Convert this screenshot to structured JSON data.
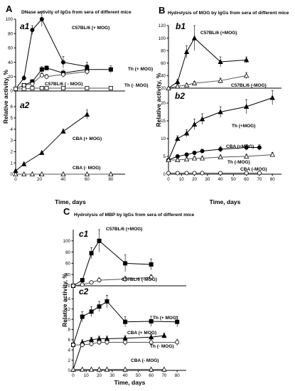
{
  "chart_data": [
    {
      "id": "A",
      "type": "line",
      "panel_label": "A",
      "title": "DNase activity of IgGs from sera of different mice",
      "xlabel": "Time, days",
      "ylabel": "Relative activity, %",
      "xticks": [
        0,
        20,
        40,
        60,
        80
      ],
      "subplots": [
        {
          "id": "a1",
          "label": "a1",
          "ylim": [
            0,
            100
          ],
          "yticks": [
            0,
            20,
            40,
            60,
            80,
            100
          ],
          "series": [
            {
              "name": "C57BL/6 (+ MOG)",
              "marker": "circle-filled",
              "x": [
                0,
                7,
                14,
                22,
                40,
                60
              ],
              "y": [
                3,
                18,
                85,
                100,
                40,
                34
              ],
              "err": [
                0,
                3,
                6,
                10,
                8,
                6
              ]
            },
            {
              "name": "Th (+ MOG)",
              "marker": "square-filled",
              "x": [
                0,
                7,
                14,
                22,
                26,
                40,
                60,
                80
              ],
              "y": [
                3,
                8,
                13,
                30,
                32,
                25,
                30,
                30
              ],
              "err": [
                0,
                2,
                3,
                4,
                3,
                4,
                4,
                5
              ]
            },
            {
              "name": "C57BL/6 ( - MOG)",
              "marker": "circle-open",
              "x": [
                0,
                7,
                14,
                22,
                26,
                40,
                60
              ],
              "y": [
                3,
                8,
                10,
                22,
                20,
                23,
                27
              ],
              "err": [
                0,
                2,
                2,
                3,
                3,
                4,
                4
              ]
            },
            {
              "name": "Th (- MOG)",
              "marker": "square-open",
              "x": [
                0,
                7,
                14,
                22,
                26,
                40,
                60,
                80
              ],
              "y": [
                3,
                3,
                4,
                4,
                4,
                4,
                4,
                4
              ],
              "err": [
                0,
                0,
                0,
                0,
                0,
                0,
                0,
                0
              ]
            }
          ]
        },
        {
          "id": "a2",
          "label": "a2",
          "ylim": [
            0,
            6
          ],
          "yticks": [
            0,
            1,
            2,
            3,
            4,
            5,
            6
          ],
          "series": [
            {
              "name": "CBA (+ MOG)",
              "marker": "triangle-filled",
              "x": [
                0,
                7,
                22,
                40,
                60
              ],
              "y": [
                0.3,
                0.9,
                1.9,
                3.8,
                5.3
              ],
              "err": [
                0,
                0,
                0,
                0.2,
                0.4
              ]
            },
            {
              "name": "CBA (- MOG)",
              "marker": "triangle-open",
              "x": [
                0,
                7,
                14,
                22,
                40,
                60,
                80
              ],
              "y": [
                0,
                0,
                0,
                0,
                0,
                0,
                0
              ],
              "err": [
                0,
                0,
                0,
                0,
                0,
                0,
                0
              ]
            }
          ]
        }
      ]
    },
    {
      "id": "B",
      "type": "line",
      "panel_label": "B",
      "title": "Hydrolysis of MOG by IgGs from sera of different mice",
      "xlabel": "Time, days",
      "ylabel": "Relative activity, %",
      "xticks": [
        0,
        10,
        20,
        30,
        40,
        50,
        60,
        70,
        80
      ],
      "subplots": [
        {
          "id": "b1",
          "label": "b1",
          "ylim": [
            20,
            120
          ],
          "yticks": [
            20,
            40,
            60,
            80,
            100,
            120
          ],
          "series": [
            {
              "name": "C57BL/6 (+MOG)",
              "marker": "triangle-filled",
              "x": [
                0,
                7,
                14,
                20,
                40,
                60
              ],
              "y": [
                20,
                30,
                78,
                100,
                62,
                65
              ],
              "err": [
                0,
                4,
                10,
                20,
                8,
                5
              ]
            },
            {
              "name": "C57BL/6 (-MOG)",
              "marker": "triangle-open",
              "x": [
                0,
                7,
                14,
                20,
                40,
                60
              ],
              "y": [
                20,
                23,
                25,
                28,
                32,
                40
              ],
              "err": [
                0,
                2,
                2,
                3,
                4,
                5
              ]
            }
          ]
        },
        {
          "id": "b2",
          "label": "b2",
          "ylim": [
            0,
            24
          ],
          "yticks": [
            0,
            5,
            10,
            15,
            20
          ],
          "series": [
            {
              "name": "Th (+MOG)",
              "marker": "triangle-filled",
              "x": [
                0,
                7,
                14,
                20,
                26,
                40,
                60,
                80
              ],
              "y": [
                4,
                10,
                11.5,
                14,
                15.5,
                17.5,
                19,
                21.5
              ],
              "err": [
                0,
                0.8,
                1,
                1.5,
                1.5,
                1.5,
                2,
                2
              ]
            },
            {
              "name": "CBA (+MOG)",
              "marker": "circle-filled",
              "x": [
                0,
                7,
                14,
                20,
                26,
                40,
                60,
                70
              ],
              "y": [
                4,
                5,
                5.5,
                6,
                6.5,
                7,
                7.5,
                7.5
              ],
              "err": [
                0,
                0.5,
                0.5,
                0.5,
                0.5,
                0.8,
                0.8,
                0.8
              ]
            },
            {
              "name": "Th (-MOG)",
              "marker": "triangle-open",
              "x": [
                0,
                7,
                14,
                20,
                26,
                40,
                60,
                80
              ],
              "y": [
                4,
                4,
                4.2,
                4.5,
                4.5,
                4.8,
                5,
                5.5
              ],
              "err": [
                0,
                0.5,
                0.5,
                0.5,
                0.5,
                0.6,
                0.6,
                0.6
              ]
            },
            {
              "name": "CBA (-MOG)",
              "marker": "circle-open",
              "x": [
                0,
                7,
                14,
                20,
                26,
                40,
                60,
                70
              ],
              "y": [
                0.3,
                0.3,
                0.3,
                0.3,
                0.3,
                0.3,
                0.3,
                0.3
              ],
              "err": [
                0,
                0,
                0,
                0,
                0,
                0,
                0,
                0
              ]
            }
          ]
        }
      ]
    },
    {
      "id": "C",
      "type": "line",
      "panel_label": "C",
      "title": "Hydrolysis of MBP by IgGs from sera of different mice",
      "xlabel": "Time, days",
      "ylabel": "Relative activity, %",
      "xticks": [
        0,
        10,
        20,
        30,
        40,
        50,
        60,
        70,
        80
      ],
      "subplots": [
        {
          "id": "c1",
          "label": "c1",
          "ylim": [
            20,
            120
          ],
          "yticks": [
            20,
            40,
            60,
            80,
            100
          ],
          "series": [
            {
              "name": "C57BL/6 (+MOG)",
              "marker": "square-filled",
              "x": [
                0,
                7,
                14,
                20,
                40,
                60
              ],
              "y": [
                20,
                30,
                78,
                100,
                60,
                58
              ],
              "err": [
                0,
                3,
                10,
                20,
                15,
                10
              ]
            },
            {
              "name": "C57BL/6 (-MOG)",
              "marker": "circle-open",
              "x": [
                0,
                7,
                14,
                20,
                40,
                60
              ],
              "y": [
                20,
                22,
                26,
                30,
                32,
                35
              ],
              "err": [
                0,
                2,
                3,
                4,
                5,
                5
              ]
            }
          ]
        },
        {
          "id": "c2",
          "label": "c2",
          "ylim": [
            0,
            16
          ],
          "yticks": [
            0,
            2,
            4,
            6,
            8,
            10,
            12,
            14
          ],
          "series": [
            {
              "name": "Th (+ MOG)",
              "marker": "square-filled",
              "x": [
                0,
                7,
                14,
                20,
                26,
                40,
                60,
                80
              ],
              "y": [
                5,
                10.5,
                11.5,
                12.5,
                13.5,
                9.5,
                9.6,
                9.5
              ],
              "err": [
                0,
                1,
                1,
                1,
                1.2,
                1,
                1,
                1
              ]
            },
            {
              "name": "CBA (+ MOG)",
              "marker": "triangle-filled",
              "x": [
                0,
                7,
                14,
                20,
                26,
                40,
                60,
                70
              ],
              "y": [
                0.2,
                5.5,
                6,
                6.2,
                6.2,
                6.3,
                6.5,
                6.8
              ],
              "err": [
                0,
                0.5,
                0.5,
                0.5,
                0.5,
                0.5,
                0.5,
                0.5
              ]
            },
            {
              "name": "Th (- MOG)",
              "marker": "circle-open",
              "x": [
                0,
                7,
                14,
                20,
                26,
                40,
                60,
                80
              ],
              "y": [
                5,
                5,
                5.2,
                5.5,
                5.5,
                5.5,
                5.5,
                5.5
              ],
              "err": [
                0,
                0.5,
                0.5,
                0.5,
                0.5,
                0.6,
                0.6,
                0.6
              ]
            },
            {
              "name": "CBA (- MOG)",
              "marker": "triangle-open",
              "x": [
                0,
                7,
                14,
                20,
                26,
                40,
                60,
                70
              ],
              "y": [
                0.2,
                0.2,
                0.2,
                0.2,
                0.2,
                0.2,
                0.2,
                0.2
              ],
              "err": [
                0,
                0,
                0,
                0,
                0,
                0,
                0,
                0
              ]
            }
          ]
        }
      ]
    }
  ]
}
